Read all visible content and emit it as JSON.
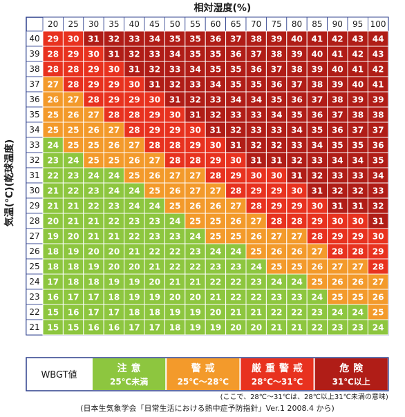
{
  "chart_data": {
    "type": "heatmap",
    "title": "",
    "xlabel": "相対湿度(%)",
    "ylabel": "気温(℃)(乾球温度)",
    "x": [
      20,
      25,
      30,
      35,
      40,
      45,
      50,
      55,
      60,
      65,
      70,
      75,
      80,
      85,
      90,
      95,
      100
    ],
    "y": [
      40,
      39,
      38,
      37,
      36,
      35,
      34,
      33,
      32,
      31,
      30,
      29,
      28,
      27,
      26,
      25,
      24,
      23,
      22,
      21
    ],
    "values": [
      [
        29,
        30,
        31,
        32,
        33,
        34,
        35,
        35,
        36,
        37,
        38,
        39,
        40,
        41,
        42,
        43,
        44
      ],
      [
        28,
        29,
        30,
        31,
        32,
        33,
        34,
        35,
        35,
        36,
        37,
        38,
        39,
        40,
        41,
        42,
        43
      ],
      [
        28,
        28,
        29,
        30,
        31,
        32,
        33,
        34,
        35,
        35,
        36,
        37,
        38,
        39,
        40,
        41,
        42
      ],
      [
        27,
        28,
        29,
        29,
        30,
        31,
        32,
        33,
        34,
        35,
        35,
        36,
        37,
        38,
        39,
        40,
        41
      ],
      [
        26,
        27,
        28,
        29,
        29,
        30,
        31,
        32,
        33,
        34,
        34,
        35,
        36,
        37,
        38,
        39,
        39
      ],
      [
        25,
        26,
        27,
        28,
        28,
        29,
        30,
        31,
        32,
        33,
        33,
        34,
        35,
        36,
        37,
        38,
        38
      ],
      [
        25,
        25,
        26,
        27,
        28,
        29,
        29,
        30,
        31,
        32,
        33,
        33,
        34,
        35,
        36,
        37,
        37
      ],
      [
        24,
        25,
        25,
        26,
        27,
        28,
        28,
        29,
        30,
        31,
        32,
        32,
        33,
        34,
        35,
        35,
        36
      ],
      [
        23,
        24,
        25,
        25,
        26,
        27,
        28,
        28,
        29,
        30,
        31,
        31,
        32,
        33,
        34,
        34,
        35
      ],
      [
        22,
        23,
        24,
        24,
        25,
        26,
        27,
        27,
        28,
        29,
        30,
        30,
        31,
        32,
        33,
        33,
        34
      ],
      [
        21,
        22,
        23,
        24,
        24,
        25,
        26,
        27,
        27,
        28,
        29,
        29,
        30,
        31,
        32,
        32,
        33
      ],
      [
        21,
        21,
        22,
        23,
        24,
        24,
        25,
        26,
        26,
        27,
        28,
        29,
        29,
        30,
        31,
        31,
        32
      ],
      [
        20,
        21,
        21,
        22,
        23,
        23,
        24,
        25,
        25,
        26,
        27,
        28,
        28,
        29,
        30,
        30,
        31
      ],
      [
        19,
        20,
        21,
        21,
        22,
        23,
        23,
        24,
        25,
        25,
        26,
        27,
        27,
        28,
        29,
        29,
        30
      ],
      [
        18,
        19,
        20,
        20,
        21,
        22,
        22,
        23,
        24,
        24,
        25,
        26,
        26,
        27,
        28,
        28,
        29
      ],
      [
        18,
        18,
        19,
        20,
        20,
        21,
        22,
        22,
        23,
        23,
        24,
        25,
        25,
        26,
        27,
        27,
        28
      ],
      [
        17,
        18,
        18,
        19,
        19,
        20,
        21,
        21,
        22,
        22,
        23,
        24,
        24,
        25,
        26,
        26,
        27
      ],
      [
        16,
        17,
        17,
        18,
        19,
        19,
        20,
        20,
        21,
        22,
        22,
        23,
        23,
        24,
        25,
        25,
        26
      ],
      [
        15,
        16,
        17,
        17,
        18,
        18,
        19,
        19,
        20,
        21,
        21,
        22,
        22,
        23,
        24,
        24,
        25
      ],
      [
        15,
        15,
        16,
        16,
        17,
        17,
        18,
        19,
        19,
        20,
        20,
        21,
        21,
        22,
        23,
        23,
        24
      ]
    ],
    "grid": true,
    "legend_placement": "bottom"
  },
  "legend": {
    "label": "WBGT値",
    "items": [
      {
        "name": "注意",
        "range": "25℃未満",
        "color": "#8dc63f"
      },
      {
        "name": "警戒",
        "range": "25℃〜28℃",
        "color": "#f39a2b"
      },
      {
        "name": "厳重警戒",
        "range": "28℃〜31℃",
        "color": "#e8321f"
      },
      {
        "name": "危険",
        "range": "31℃以上",
        "color": "#b01d17"
      }
    ]
  },
  "note": "(ここで、28℃〜31℃は、28℃以上31℃未満の意味)",
  "source": "(日本生気象学会「日常生活における熱中症予防指針」Ver.1 2008.4 から)",
  "colors": {
    "header_bg": "#ffffff",
    "grid_line": "#2c3e8c",
    "cell_border": "#ffffff"
  }
}
